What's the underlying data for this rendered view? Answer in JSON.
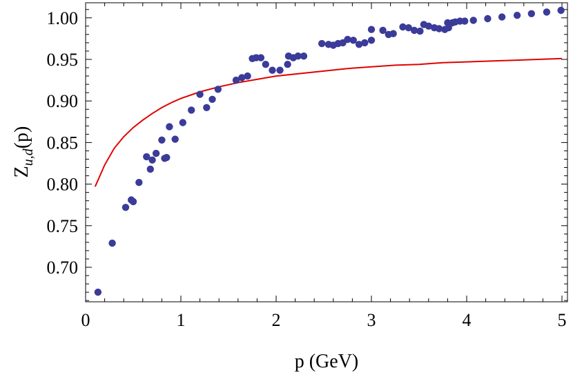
{
  "chart_data": {
    "type": "scatter",
    "xlabel": "p (GeV)",
    "ylabel": "Z_{u,d}(p)",
    "xlim": [
      0,
      5.1
    ],
    "ylim": [
      0.66,
      1.02
    ],
    "x_ticks": [
      "0",
      "1",
      "2",
      "3",
      "4",
      "5"
    ],
    "y_ticks": [
      "0.70",
      "0.75",
      "0.80",
      "0.85",
      "0.90",
      "0.95",
      "1.00"
    ],
    "grid": false,
    "frame": true,
    "series": [
      {
        "kind": "scatter",
        "color": "#3b3b9a",
        "points": [
          [
            0.13,
            0.67
          ],
          [
            0.28,
            0.729
          ],
          [
            0.42,
            0.772
          ],
          [
            0.48,
            0.781
          ],
          [
            0.5,
            0.779
          ],
          [
            0.56,
            0.802
          ],
          [
            0.64,
            0.833
          ],
          [
            0.68,
            0.818
          ],
          [
            0.7,
            0.829
          ],
          [
            0.74,
            0.837
          ],
          [
            0.8,
            0.853
          ],
          [
            0.83,
            0.831
          ],
          [
            0.85,
            0.832
          ],
          [
            0.88,
            0.869
          ],
          [
            0.94,
            0.854
          ],
          [
            1.02,
            0.874
          ],
          [
            1.11,
            0.889
          ],
          [
            1.2,
            0.908
          ],
          [
            1.27,
            0.892
          ],
          [
            1.33,
            0.902
          ],
          [
            1.39,
            0.914
          ],
          [
            1.58,
            0.925
          ],
          [
            1.64,
            0.928
          ],
          [
            1.7,
            0.93
          ],
          [
            1.75,
            0.951
          ],
          [
            1.79,
            0.952
          ],
          [
            1.84,
            0.952
          ],
          [
            1.89,
            0.944
          ],
          [
            1.96,
            0.937
          ],
          [
            2.04,
            0.937
          ],
          [
            2.12,
            0.944
          ],
          [
            2.13,
            0.954
          ],
          [
            2.18,
            0.952
          ],
          [
            2.23,
            0.954
          ],
          [
            2.29,
            0.954
          ],
          [
            2.48,
            0.969
          ],
          [
            2.55,
            0.968
          ],
          [
            2.6,
            0.967
          ],
          [
            2.65,
            0.969
          ],
          [
            2.7,
            0.97
          ],
          [
            2.75,
            0.974
          ],
          [
            2.81,
            0.973
          ],
          [
            2.87,
            0.968
          ],
          [
            2.93,
            0.97
          ],
          [
            3.0,
            0.973
          ],
          [
            3.0,
            0.986
          ],
          [
            3.12,
            0.985
          ],
          [
            3.18,
            0.98
          ],
          [
            3.23,
            0.981
          ],
          [
            3.33,
            0.989
          ],
          [
            3.39,
            0.988
          ],
          [
            3.45,
            0.985
          ],
          [
            3.51,
            0.984
          ],
          [
            3.55,
            0.992
          ],
          [
            3.6,
            0.99
          ],
          [
            3.66,
            0.988
          ],
          [
            3.71,
            0.987
          ],
          [
            3.77,
            0.986
          ],
          [
            3.8,
            0.994
          ],
          [
            3.81,
            0.988
          ],
          [
            3.85,
            0.994
          ],
          [
            3.88,
            0.995
          ],
          [
            3.93,
            0.996
          ],
          [
            3.98,
            0.996
          ],
          [
            4.07,
            0.997
          ],
          [
            4.22,
            0.999
          ],
          [
            4.37,
            1.001
          ],
          [
            4.53,
            1.003
          ],
          [
            4.68,
            1.005
          ],
          [
            4.84,
            1.007
          ],
          [
            4.99,
            1.009
          ]
        ]
      },
      {
        "kind": "line",
        "color": "#e00000",
        "points": [
          [
            0.1,
            0.797
          ],
          [
            0.15,
            0.81
          ],
          [
            0.2,
            0.823
          ],
          [
            0.3,
            0.843
          ],
          [
            0.4,
            0.857
          ],
          [
            0.5,
            0.868
          ],
          [
            0.6,
            0.877
          ],
          [
            0.7,
            0.885
          ],
          [
            0.8,
            0.892
          ],
          [
            0.9,
            0.898
          ],
          [
            1.0,
            0.903
          ],
          [
            1.2,
            0.911
          ],
          [
            1.4,
            0.917
          ],
          [
            1.6,
            0.922
          ],
          [
            1.8,
            0.926
          ],
          [
            2.0,
            0.93
          ],
          [
            2.25,
            0.933
          ],
          [
            2.5,
            0.936
          ],
          [
            2.75,
            0.939
          ],
          [
            3.0,
            0.941
          ],
          [
            3.25,
            0.943
          ],
          [
            3.5,
            0.944
          ],
          [
            3.75,
            0.946
          ],
          [
            4.0,
            0.947
          ],
          [
            4.25,
            0.948
          ],
          [
            4.5,
            0.949
          ],
          [
            4.75,
            0.95
          ],
          [
            5.0,
            0.951
          ]
        ]
      }
    ]
  }
}
